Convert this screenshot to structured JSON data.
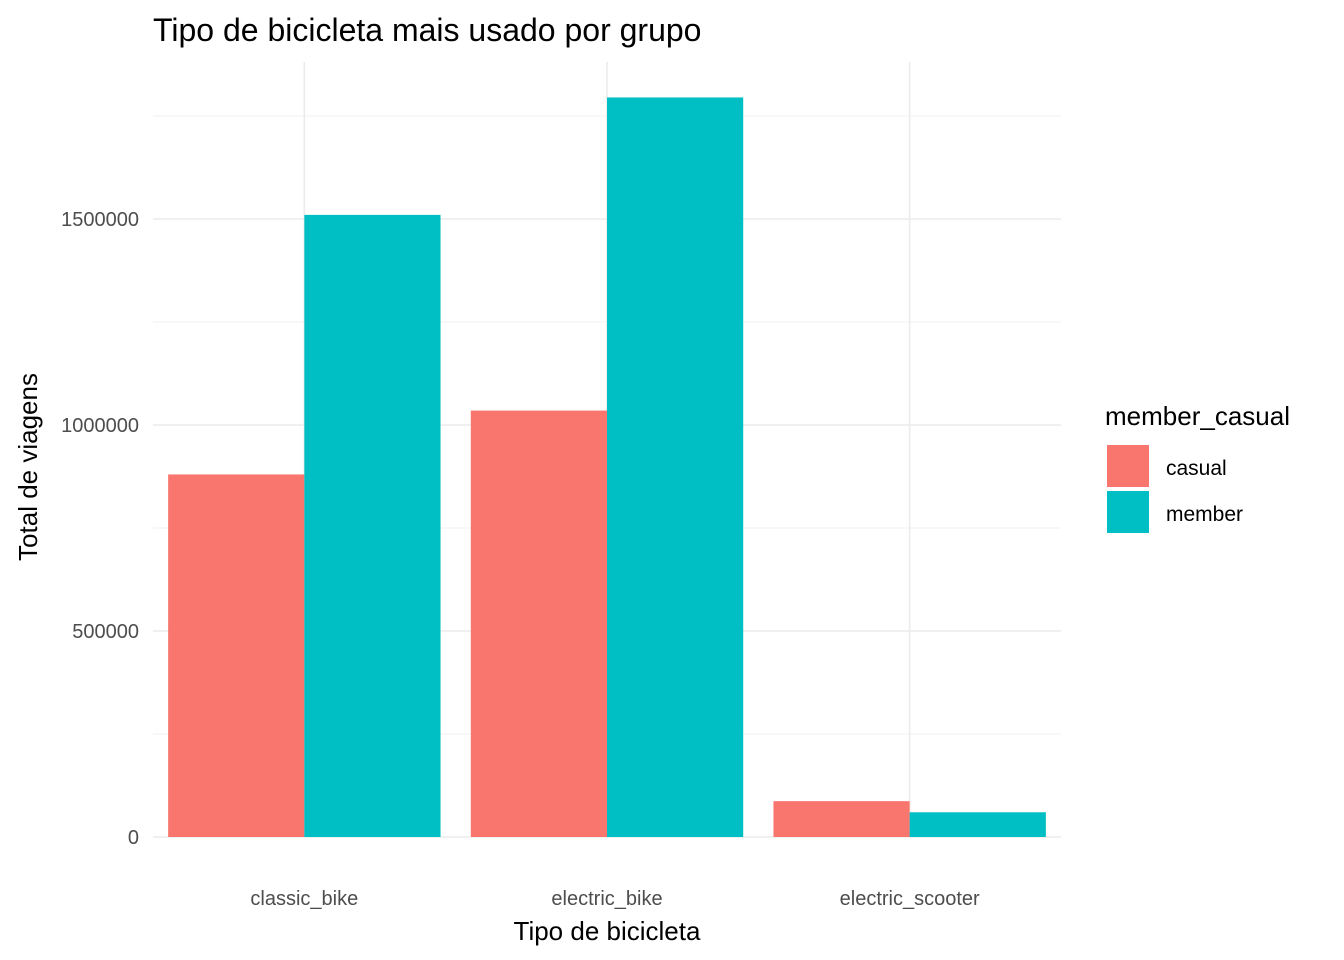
{
  "chart_data": {
    "type": "bar",
    "title": "Tipo de bicicleta mais usado por grupo",
    "xlabel": "Tipo de bicicleta",
    "ylabel": "Total de viagens",
    "categories": [
      "classic_bike",
      "electric_bike",
      "electric_scooter"
    ],
    "series": [
      {
        "name": "casual",
        "color": "#F8766D",
        "values": [
          880000,
          1035000,
          87000
        ]
      },
      {
        "name": "member",
        "color": "#00BFC4",
        "values": [
          1510000,
          1795000,
          60000
        ]
      }
    ],
    "ylim": [
      0,
      1880000
    ],
    "yticks": [
      0,
      500000,
      1000000,
      1500000
    ],
    "ytick_labels": [
      "0",
      "500000",
      "1000000",
      "1500000"
    ],
    "grid": true,
    "legend": {
      "title": "member_casual",
      "position": "right"
    }
  }
}
